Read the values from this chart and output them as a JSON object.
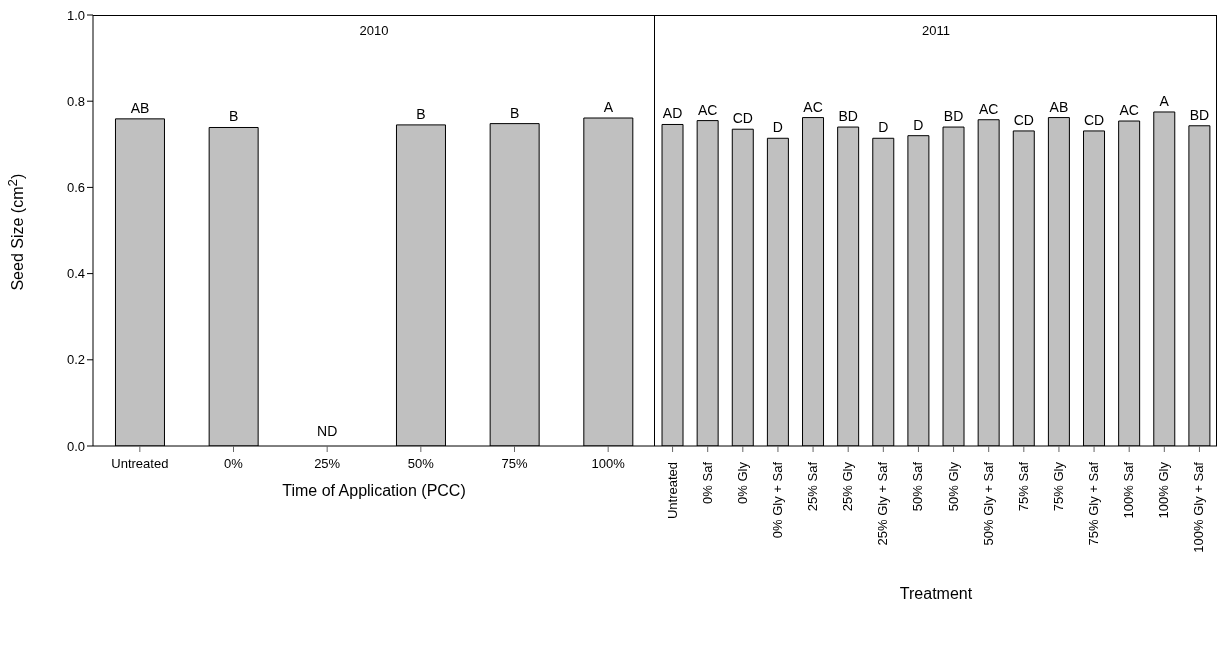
{
  "chart_data": [
    {
      "type": "bar",
      "title": "2010",
      "xlabel": "Time of Application (PCC)",
      "ylabel": "Seed Size (cm$^{2}$)",
      "categories": [
        "Untreated",
        "0%",
        "25%",
        "50%",
        "75%",
        "100%"
      ],
      "values": [
        0.759,
        0.739,
        null,
        0.745,
        0.748,
        0.761
      ],
      "value_labels": [
        "AB",
        "B",
        "ND",
        "B",
        "B",
        "A"
      ],
      "color": "#c0c0c0",
      "ylim": [
        0,
        1
      ],
      "yticks": [
        {
          "value": 0,
          "label": "0.0"
        },
        {
          "value": 0.2,
          "label": "0.2"
        },
        {
          "value": 0.4,
          "label": "0.4"
        },
        {
          "value": 0.6,
          "label": "0.6"
        },
        {
          "value": 0.8,
          "label": "0.8"
        },
        {
          "value": 1,
          "label": "1.0"
        }
      ],
      "grid": false
    },
    {
      "type": "bar",
      "title": "2011",
      "xlabel": "Treatment",
      "categories": [
        "Untreated",
        "0% Saf",
        "0% Gly",
        "0% Gly + Saf",
        "25% Saf",
        "25% Gly",
        "25% Gly + Saf",
        "50% Saf",
        "50% Gly",
        "50% Gly + Saf",
        "75% Saf",
        "75% Gly",
        "75% Gly + Saf",
        "100% Saf",
        "100% Gly",
        "100% Gly + Saf"
      ],
      "values": [
        0.746,
        0.755,
        0.735,
        0.714,
        0.762,
        0.74,
        0.714,
        0.72,
        0.74,
        0.757,
        0.731,
        0.762,
        0.731,
        0.754,
        0.775,
        0.743
      ],
      "value_labels": [
        "AD",
        "AC",
        "CD",
        "D",
        "AC",
        "BD",
        "D",
        "D",
        "BD",
        "AC",
        "CD",
        "AB",
        "CD",
        "AC",
        "A",
        "BD"
      ],
      "color": "#c0c0c0",
      "ylim": [
        0,
        1
      ],
      "tick_labels": "x",
      "grid": false
    }
  ]
}
